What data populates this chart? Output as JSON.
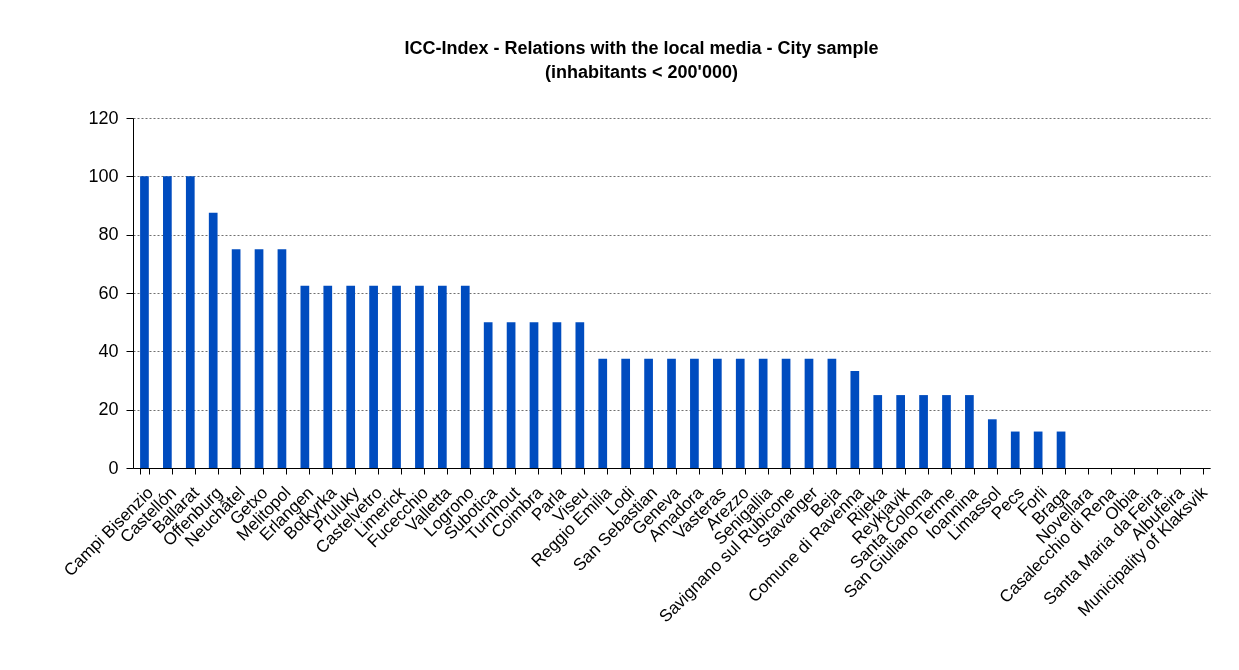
{
  "chart_data": {
    "type": "bar",
    "title": "ICC-Index - Relations with the local media - City sample",
    "subtitle": "(inhabitants < 200'000)",
    "categories": [
      "Campi Bisenzio",
      "Castellón",
      "Ballarat",
      "Offenburg",
      "Neuchâtel",
      "Getxo",
      "Melitopol",
      "Erlangen",
      "Botkyrka",
      "Pruluky",
      "Castelvetro",
      "Limerick",
      "Fucecchio",
      "Valletta",
      "Logrono",
      "Subotica",
      "Turnhout",
      "Coimbra",
      "Parla",
      "Viseu",
      "Reggio Emilia",
      "Lodi",
      "San Sebastian",
      "Geneva",
      "Amadora",
      "Vasteras",
      "Arezzo",
      "Senigallia",
      "Savignano sul Rubicone",
      "Stavanger",
      "Beja",
      "Comune di Ravenna",
      "Rijeka",
      "Reykjavik",
      "Santa Coloma",
      "San Giuliano Terme",
      "Ioannina",
      "Limassol",
      "Pecs",
      "Forli",
      "Braga",
      "Novellara",
      "Casalecchio di Rena",
      "Olbia",
      "Santa Maria da Feira",
      "Albufeira",
      "Municipality of Klaksvik"
    ],
    "values": [
      100,
      100,
      100,
      87.5,
      75,
      75,
      75,
      62.5,
      62.5,
      62.5,
      62.5,
      62.5,
      62.5,
      62.5,
      62.5,
      50,
      50,
      50,
      50,
      50,
      37.5,
      37.5,
      37.5,
      37.5,
      37.5,
      37.5,
      37.5,
      37.5,
      37.5,
      37.5,
      37.5,
      33.3,
      25,
      25,
      25,
      25,
      25,
      16.7,
      12.5,
      12.5,
      12.5,
      0,
      0,
      0,
      0,
      0,
      0
    ],
    "color": "#004cbf",
    "ylim": [
      0,
      120
    ],
    "yticks": [
      0,
      20,
      40,
      60,
      80,
      100,
      120
    ],
    "grid": "y"
  }
}
